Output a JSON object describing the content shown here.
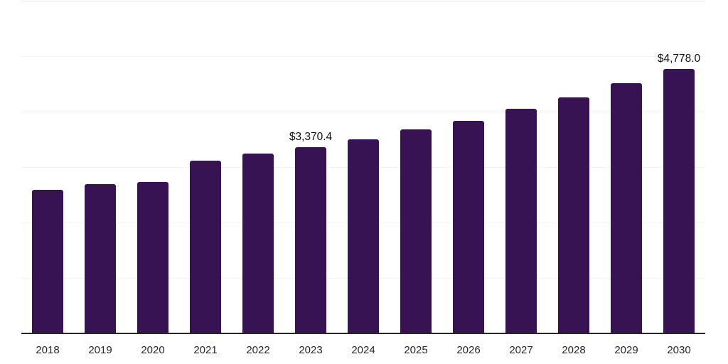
{
  "chart_data": {
    "type": "bar",
    "title": "",
    "xlabel": "",
    "ylabel": "",
    "categories": [
      "2018",
      "2019",
      "2020",
      "2021",
      "2022",
      "2023",
      "2024",
      "2025",
      "2026",
      "2027",
      "2028",
      "2029",
      "2030"
    ],
    "values": [
      2600,
      2712,
      2744,
      3128,
      3256,
      3370.4,
      3513,
      3690,
      3846,
      4064,
      4269,
      4526,
      4778.0
    ],
    "data_labels": {
      "2023": "$3,370.4",
      "2030": "$4,778.0"
    },
    "ylim": [
      0,
      6000
    ],
    "gridline_interval": 1000,
    "grid": "horizontal",
    "legend": "none",
    "colors": {
      "bar": "#371353",
      "axis_line": "#262626",
      "gridline": "#f2f2f2",
      "plot_top_border": "#e3e3e3",
      "tick_label": "#262626",
      "data_label": "#111111",
      "background": "#ffffff"
    }
  }
}
